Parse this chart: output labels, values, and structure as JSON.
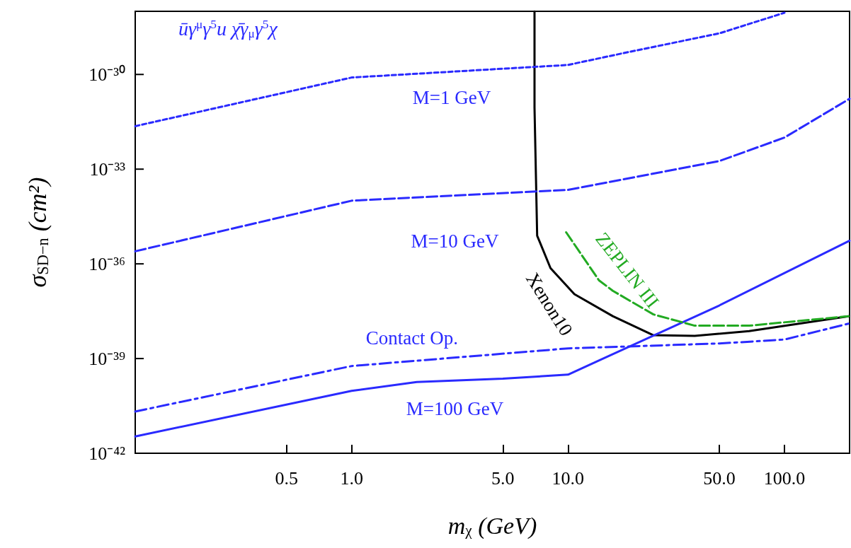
{
  "chart_data": {
    "type": "line",
    "xlabel": "m$_{χ}$ (GeV)",
    "ylabel": "σ$_{SD−n}$ (cm²)",
    "annotations": [
      "ūγ$^{μ}$γ$^{5}$u χ̄γ$_{μ}$γ$^{5}$χ"
    ],
    "log": "xy",
    "xlim": [
      0.1,
      200
    ],
    "ylim": [
      1e-42,
      1e-28
    ],
    "xticks": [
      {
        "value": 0.5,
        "label": "0.5"
      },
      {
        "value": 1,
        "label": "1.0"
      },
      {
        "value": 5,
        "label": "5.0"
      },
      {
        "value": 10,
        "label": "10.0"
      },
      {
        "value": 50,
        "label": "50.0"
      },
      {
        "value": 100,
        "label": "100.0"
      }
    ],
    "yticks": [
      {
        "value": 1e-42,
        "label": "10⁻⁴²"
      },
      {
        "value": 1e-39,
        "label": "10⁻³⁹"
      },
      {
        "value": 1e-36,
        "label": "10⁻³⁶"
      },
      {
        "value": 1e-33,
        "label": "10⁻³³"
      },
      {
        "value": 1e-30,
        "label": "10⁻³⁰"
      }
    ],
    "grid": false,
    "legend": false,
    "marker": "none",
    "series": [
      {
        "name": "M=1 GeV",
        "color": "#2a2aff",
        "line_style": "dotted",
        "x": [
          0.1,
          1,
          10,
          20,
          50,
          100
        ],
        "values": [
          2.3e-32,
          8e-31,
          2e-30,
          5.5e-30,
          2e-29,
          9e-29
        ]
      },
      {
        "name": "M=10 GeV",
        "color": "#2a2aff",
        "line_style": "dashed",
        "x": [
          0.1,
          1,
          10,
          50,
          100,
          200
        ],
        "values": [
          2.5e-36,
          1e-34,
          2.2e-34,
          1.8e-33,
          1e-32,
          1.7e-31
        ]
      },
      {
        "name": "Contact Op.",
        "color": "#2a2aff",
        "line_style": "dashdot",
        "x": [
          0.1,
          1,
          10,
          50,
          100,
          200
        ],
        "values": [
          2.1e-41,
          5.8e-40,
          2.1e-39,
          3e-39,
          4e-39,
          1.3e-38
        ]
      },
      {
        "name": "M=100 GeV",
        "color": "#2a2aff",
        "line_style": "solid",
        "x": [
          0.1,
          1,
          2,
          5,
          10,
          50,
          200
        ],
        "values": [
          3.4e-42,
          9.5e-41,
          1.8e-40,
          2.3e-40,
          3.1e-40,
          4.8e-38,
          5.4e-36
        ]
      },
      {
        "name": "Xenon10",
        "color": "#000000",
        "line_style": "solid",
        "x": [
          7.0,
          7.0,
          7.2,
          8.3,
          10.7,
          16.1,
          24.8,
          38.5,
          68.7,
          198
        ],
        "values": [
          1e-28,
          9e-32,
          7.8e-36,
          7.3e-37,
          1.1e-37,
          2.2e-38,
          5.5e-39,
          5.2e-39,
          7.4e-39,
          2.2e-38
        ]
      },
      {
        "name": "ZEPLIN III",
        "color": "#22aa22",
        "line_style": "dashed",
        "x": [
          9.8,
          13.9,
          16.1,
          24.8,
          38.5,
          68.7,
          198
        ],
        "values": [
          1e-35,
          3e-37,
          1.4e-37,
          2.5e-38,
          1.1e-38,
          1.1e-38,
          2.2e-38
        ]
      }
    ]
  }
}
